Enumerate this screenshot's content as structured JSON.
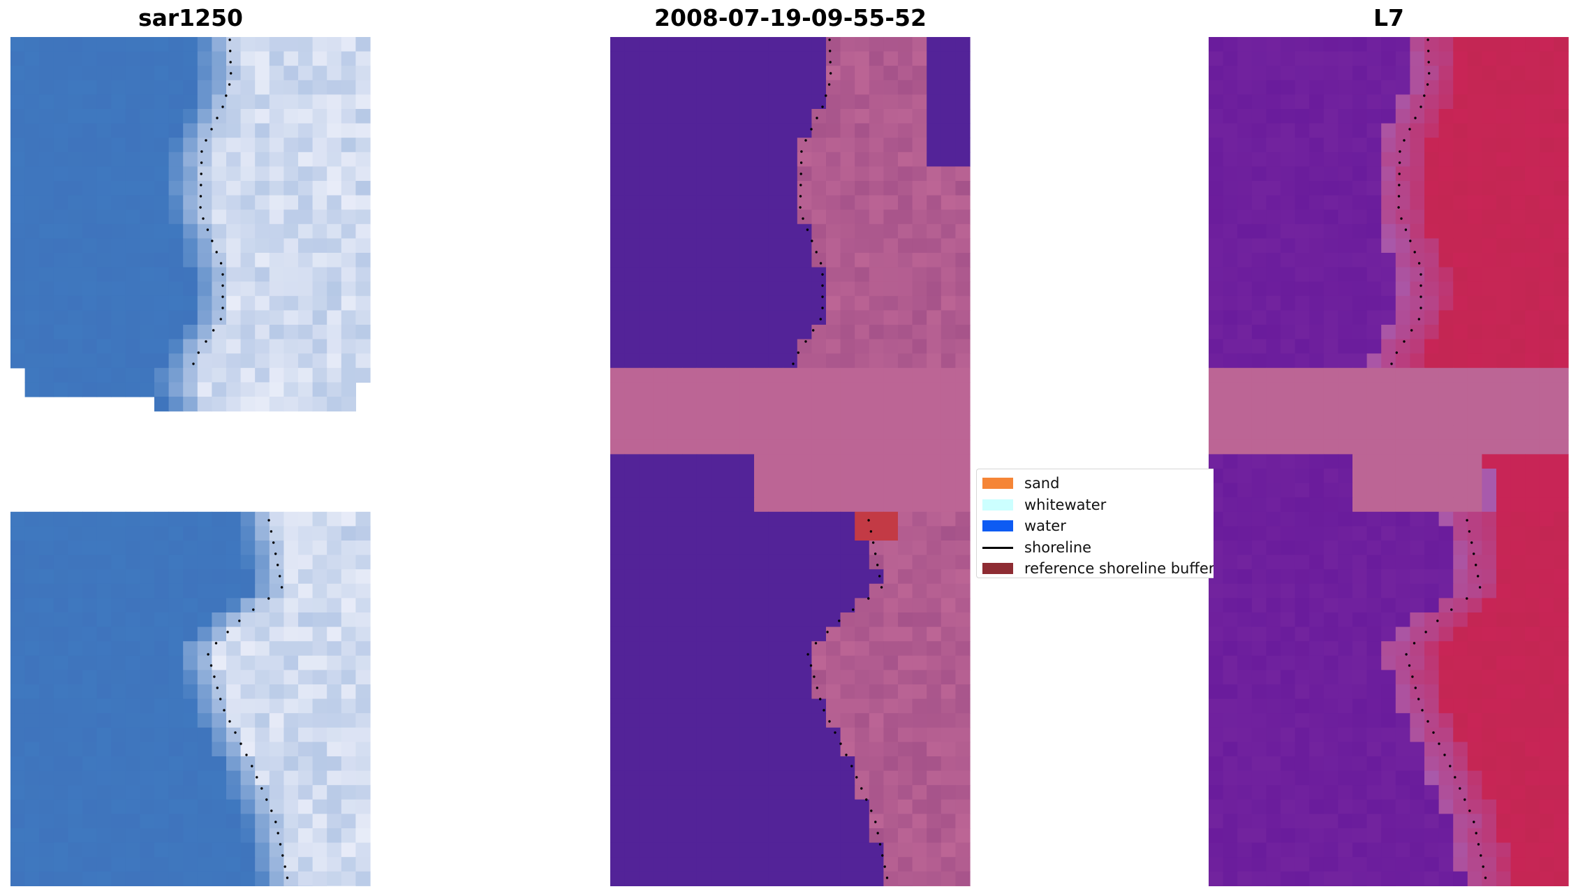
{
  "panels": [
    {
      "title": "sar1250"
    },
    {
      "title": "2008-07-19-09-55-52"
    },
    {
      "title": "L7"
    }
  ],
  "legend": {
    "items": [
      {
        "label": "sand",
        "color": "#F58536"
      },
      {
        "label": "whitewater",
        "color": "#CCFFFF"
      },
      {
        "label": "water",
        "color": "#0D5BF3"
      },
      {
        "label": "shoreline",
        "color": "#000000"
      },
      {
        "label": "reference shoreline buffer",
        "color": "#8E2C33"
      }
    ]
  },
  "colors": {
    "sea_rgb": "#3F78BF",
    "sea_class": "#532398",
    "land_class": "#BC6595",
    "sea_ndwi": "#6A1C9C",
    "land_ndwi": "#C82556",
    "buffer_red": "#C33A45"
  }
}
